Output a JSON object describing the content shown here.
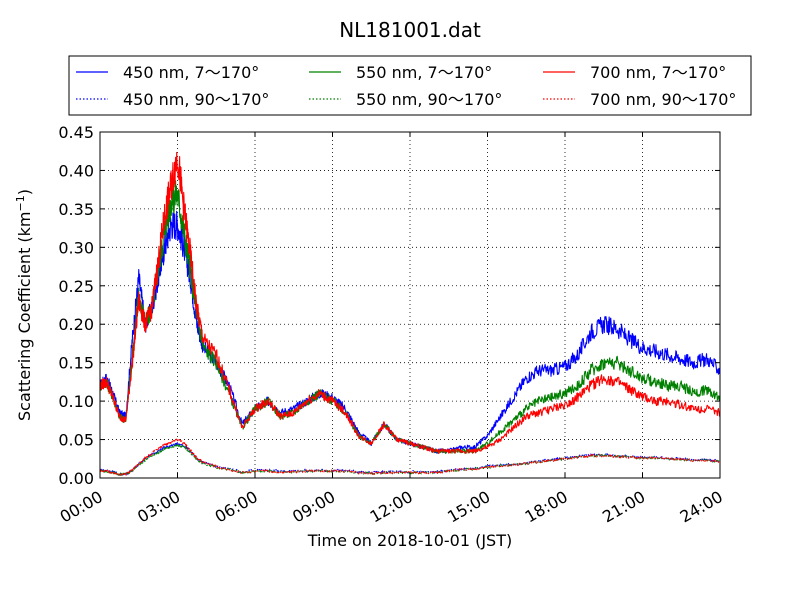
{
  "chart_data": {
    "type": "line",
    "title": "NL181001.dat",
    "xlabel": "Time on 2018-10-01 (JST)",
    "ylabel": "Scattering Coefficient (km",
    "ylabel_sup": "−1",
    "ylabel_end": ")",
    "xlim": [
      "00:00",
      "24:00"
    ],
    "ylim": [
      0,
      0.45
    ],
    "x_ticks": [
      "00:00",
      "03:00",
      "06:00",
      "09:00",
      "12:00",
      "15:00",
      "18:00",
      "21:00",
      "24:00"
    ],
    "y_ticks": [
      "0.00",
      "0.05",
      "0.10",
      "0.15",
      "0.20",
      "0.25",
      "0.30",
      "0.35",
      "0.40",
      "0.45"
    ],
    "grid": true,
    "legend_position": "top (outside, above plot)",
    "x_hours": [
      0,
      0.25,
      0.5,
      0.75,
      1.0,
      1.25,
      1.5,
      1.75,
      2.0,
      2.25,
      2.5,
      2.75,
      3.0,
      3.25,
      3.5,
      3.75,
      4.0,
      4.5,
      5.0,
      5.5,
      6.0,
      6.5,
      7.0,
      7.5,
      8.0,
      8.5,
      9.0,
      9.5,
      10.0,
      10.5,
      11.0,
      11.5,
      12.0,
      12.5,
      13.0,
      13.5,
      14.0,
      14.5,
      15.0,
      15.5,
      16.0,
      16.5,
      17.0,
      17.5,
      18.0,
      18.5,
      19.0,
      19.5,
      20.0,
      20.5,
      21.0,
      21.5,
      22.0,
      22.5,
      23.0,
      23.5,
      24.0
    ],
    "series": [
      {
        "name": "450 nm, 7～170°",
        "color": "#0000ff",
        "style": "solid",
        "values": [
          0.12,
          0.13,
          0.11,
          0.085,
          0.08,
          0.18,
          0.26,
          0.2,
          0.22,
          0.26,
          0.3,
          0.33,
          0.33,
          0.3,
          0.26,
          0.2,
          0.17,
          0.15,
          0.12,
          0.07,
          0.09,
          0.1,
          0.085,
          0.09,
          0.1,
          0.11,
          0.105,
          0.09,
          0.06,
          0.045,
          0.07,
          0.05,
          0.045,
          0.04,
          0.035,
          0.035,
          0.04,
          0.04,
          0.055,
          0.08,
          0.105,
          0.13,
          0.14,
          0.14,
          0.145,
          0.16,
          0.19,
          0.2,
          0.195,
          0.18,
          0.17,
          0.165,
          0.16,
          0.155,
          0.15,
          0.155,
          0.14
        ]
      },
      {
        "name": "550 nm, 7～170°",
        "color": "#008000",
        "style": "solid",
        "values": [
          0.12,
          0.125,
          0.105,
          0.08,
          0.075,
          0.16,
          0.24,
          0.2,
          0.22,
          0.27,
          0.32,
          0.36,
          0.37,
          0.32,
          0.27,
          0.21,
          0.17,
          0.15,
          0.11,
          0.065,
          0.09,
          0.1,
          0.08,
          0.085,
          0.1,
          0.11,
          0.1,
          0.085,
          0.055,
          0.045,
          0.07,
          0.05,
          0.045,
          0.04,
          0.035,
          0.035,
          0.035,
          0.035,
          0.045,
          0.06,
          0.075,
          0.09,
          0.1,
          0.105,
          0.11,
          0.12,
          0.14,
          0.15,
          0.15,
          0.14,
          0.13,
          0.125,
          0.12,
          0.12,
          0.11,
          0.115,
          0.105
        ]
      },
      {
        "name": "700 nm, 7～170°",
        "color": "#ff0000",
        "style": "solid",
        "values": [
          0.12,
          0.125,
          0.105,
          0.08,
          0.075,
          0.15,
          0.23,
          0.2,
          0.22,
          0.28,
          0.34,
          0.38,
          0.42,
          0.35,
          0.29,
          0.22,
          0.18,
          0.16,
          0.115,
          0.065,
          0.09,
          0.1,
          0.08,
          0.085,
          0.1,
          0.11,
          0.1,
          0.085,
          0.055,
          0.045,
          0.07,
          0.05,
          0.045,
          0.04,
          0.035,
          0.035,
          0.035,
          0.035,
          0.04,
          0.05,
          0.065,
          0.08,
          0.085,
          0.09,
          0.095,
          0.105,
          0.12,
          0.13,
          0.125,
          0.115,
          0.105,
          0.1,
          0.1,
          0.095,
          0.09,
          0.09,
          0.085
        ]
      },
      {
        "name": "450 nm, 90～170°",
        "color": "#0000ff",
        "style": "dotted",
        "values": [
          0.01,
          0.01,
          0.008,
          0.005,
          0.005,
          0.01,
          0.018,
          0.025,
          0.03,
          0.035,
          0.04,
          0.042,
          0.045,
          0.042,
          0.035,
          0.025,
          0.02,
          0.015,
          0.012,
          0.008,
          0.01,
          0.01,
          0.009,
          0.009,
          0.01,
          0.01,
          0.01,
          0.01,
          0.008,
          0.007,
          0.008,
          0.008,
          0.008,
          0.008,
          0.008,
          0.01,
          0.012,
          0.013,
          0.015,
          0.017,
          0.018,
          0.02,
          0.022,
          0.024,
          0.026,
          0.028,
          0.03,
          0.03,
          0.029,
          0.028,
          0.027,
          0.027,
          0.026,
          0.025,
          0.024,
          0.024,
          0.022
        ]
      },
      {
        "name": "550 nm, 90～170°",
        "color": "#008000",
        "style": "dotted",
        "values": [
          0.009,
          0.009,
          0.007,
          0.005,
          0.005,
          0.009,
          0.017,
          0.023,
          0.028,
          0.033,
          0.038,
          0.04,
          0.043,
          0.04,
          0.033,
          0.024,
          0.019,
          0.014,
          0.011,
          0.007,
          0.009,
          0.009,
          0.008,
          0.008,
          0.009,
          0.009,
          0.009,
          0.009,
          0.007,
          0.006,
          0.007,
          0.007,
          0.007,
          0.007,
          0.007,
          0.009,
          0.011,
          0.012,
          0.014,
          0.016,
          0.017,
          0.019,
          0.021,
          0.023,
          0.025,
          0.027,
          0.029,
          0.029,
          0.028,
          0.027,
          0.026,
          0.026,
          0.025,
          0.024,
          0.023,
          0.023,
          0.021
        ]
      },
      {
        "name": "700 nm, 90～170°",
        "color": "#ff0000",
        "style": "dotted",
        "values": [
          0.009,
          0.009,
          0.007,
          0.005,
          0.005,
          0.01,
          0.018,
          0.026,
          0.032,
          0.038,
          0.044,
          0.046,
          0.05,
          0.045,
          0.036,
          0.026,
          0.02,
          0.015,
          0.011,
          0.007,
          0.009,
          0.009,
          0.008,
          0.008,
          0.009,
          0.009,
          0.009,
          0.009,
          0.007,
          0.006,
          0.007,
          0.007,
          0.007,
          0.007,
          0.007,
          0.009,
          0.011,
          0.012,
          0.014,
          0.016,
          0.017,
          0.019,
          0.021,
          0.023,
          0.025,
          0.027,
          0.029,
          0.029,
          0.028,
          0.027,
          0.026,
          0.026,
          0.025,
          0.024,
          0.023,
          0.023,
          0.021
        ]
      }
    ],
    "legend_order": [
      0,
      1,
      2,
      3,
      4,
      5
    ]
  }
}
